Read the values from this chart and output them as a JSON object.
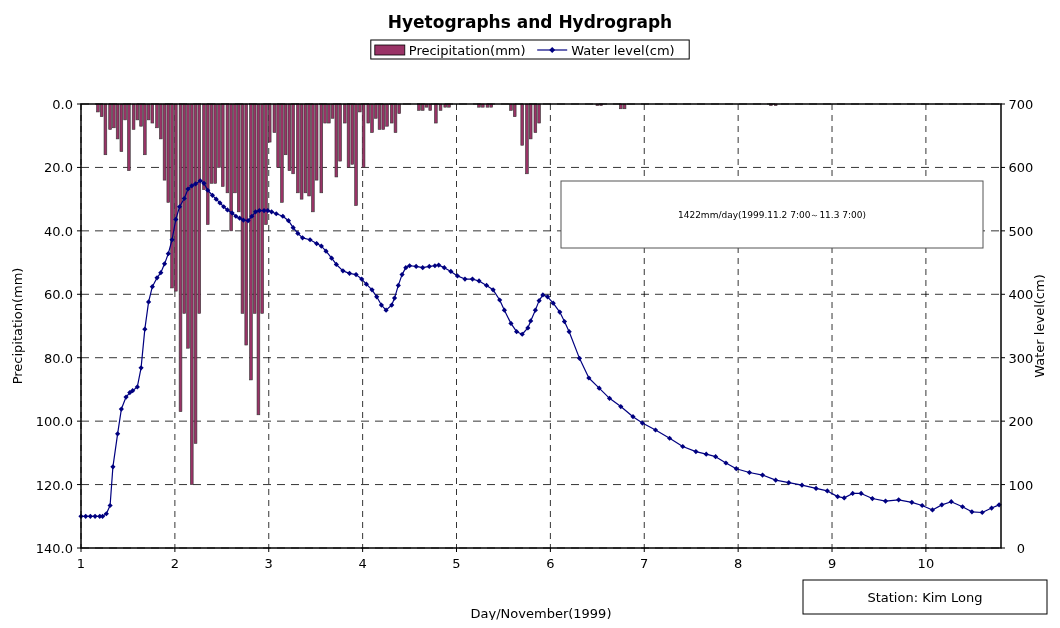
{
  "chart_data": {
    "type": "bar",
    "title": "Hyetographs and Hydrograph",
    "xlabel": "Day/November(1999)",
    "ylabel": "Precipitation(mm)",
    "y2label": "Water level(cm)",
    "xlim": [
      1,
      10.8
    ],
    "xticks": [
      1,
      2,
      3,
      4,
      5,
      6,
      7,
      8,
      9,
      10
    ],
    "ylim": [
      140,
      0
    ],
    "yticks": [
      {
        "value": 0,
        "label": "0.0"
      },
      {
        "value": 20,
        "label": "20.0"
      },
      {
        "value": 40,
        "label": "40.0"
      },
      {
        "value": 60,
        "label": "60.0"
      },
      {
        "value": 80,
        "label": "80.0"
      },
      {
        "value": 100,
        "label": "100.0"
      },
      {
        "value": 120,
        "label": "120.0"
      },
      {
        "value": 140,
        "label": "140.0"
      }
    ],
    "y2lim": [
      0,
      700
    ],
    "y2ticks": [
      0,
      100,
      200,
      300,
      400,
      500,
      600,
      700
    ],
    "grid": true,
    "legend": "top",
    "series": [
      {
        "name": "Precipitation(mm)",
        "color": "#993366",
        "x": [
          1.18,
          1.22,
          1.26,
          1.31,
          1.35,
          1.39,
          1.43,
          1.47,
          1.51,
          1.56,
          1.6,
          1.64,
          1.68,
          1.72,
          1.76,
          1.81,
          1.85,
          1.89,
          1.93,
          1.97,
          2.01,
          2.06,
          2.1,
          2.14,
          2.18,
          2.22,
          2.26,
          2.31,
          2.35,
          2.39,
          2.43,
          2.47,
          2.51,
          2.56,
          2.6,
          2.64,
          2.68,
          2.72,
          2.76,
          2.81,
          2.85,
          2.89,
          2.93,
          2.97,
          3.01,
          3.06,
          3.1,
          3.14,
          3.18,
          3.22,
          3.26,
          3.31,
          3.35,
          3.39,
          3.43,
          3.47,
          3.51,
          3.56,
          3.6,
          3.64,
          3.68,
          3.72,
          3.76,
          3.81,
          3.85,
          3.89,
          3.93,
          3.97,
          4.01,
          4.06,
          4.1,
          4.14,
          4.18,
          4.22,
          4.26,
          4.31,
          4.35,
          4.39,
          4.6,
          4.64,
          4.68,
          4.72,
          4.78,
          4.83,
          4.88,
          4.92,
          5.24,
          5.28,
          5.33,
          5.37,
          5.58,
          5.62,
          5.7,
          5.75,
          5.79,
          5.84,
          5.88,
          6.5,
          6.54,
          6.75,
          6.79,
          8.35,
          8.4
        ],
        "values": [
          2.5,
          4,
          16,
          8,
          7.5,
          11,
          15,
          5,
          21,
          8,
          5,
          7,
          16,
          5,
          6,
          7.5,
          11,
          24,
          31,
          58,
          59,
          97,
          66,
          77,
          120,
          107,
          66,
          27,
          38,
          25,
          25,
          20,
          26,
          28,
          40,
          28,
          34,
          66,
          76,
          87,
          66,
          98,
          66,
          38,
          12,
          9,
          20,
          31,
          16,
          21,
          22,
          28,
          30,
          28,
          29,
          34,
          24,
          28,
          6,
          6,
          4.5,
          23,
          18,
          6,
          20,
          19,
          32,
          2.5,
          20,
          6,
          9,
          4.5,
          8,
          8,
          7,
          6,
          9,
          3,
          2,
          2,
          1,
          2,
          6,
          2,
          1,
          1,
          1,
          1,
          1,
          1,
          2,
          4,
          13,
          22,
          11,
          9,
          6,
          0.5,
          0.5,
          1.5,
          1.5,
          0.5,
          0.5
        ]
      },
      {
        "name": "Water level(cm)",
        "type": "line",
        "axis": "y2",
        "color": "#000080",
        "marker": "diamond",
        "x": [
          1.0,
          1.05,
          1.1,
          1.15,
          1.2,
          1.23,
          1.27,
          1.31,
          1.34,
          1.39,
          1.43,
          1.48,
          1.52,
          1.55,
          1.6,
          1.64,
          1.68,
          1.72,
          1.76,
          1.81,
          1.85,
          1.89,
          1.93,
          1.97,
          2.01,
          2.05,
          2.1,
          2.14,
          2.18,
          2.22,
          2.27,
          2.31,
          2.35,
          2.4,
          2.44,
          2.48,
          2.52,
          2.56,
          2.61,
          2.65,
          2.69,
          2.73,
          2.78,
          2.82,
          2.86,
          2.9,
          2.95,
          2.99,
          3.03,
          3.08,
          3.15,
          3.21,
          3.26,
          3.31,
          3.36,
          3.44,
          3.51,
          3.56,
          3.61,
          3.67,
          3.72,
          3.79,
          3.86,
          3.93,
          3.99,
          4.04,
          4.1,
          4.15,
          4.2,
          4.25,
          4.31,
          4.34,
          4.38,
          4.42,
          4.46,
          4.5,
          4.57,
          4.64,
          4.71,
          4.77,
          4.81,
          4.87,
          4.94,
          5.01,
          5.09,
          5.17,
          5.24,
          5.32,
          5.39,
          5.46,
          5.51,
          5.58,
          5.64,
          5.7,
          5.76,
          5.79,
          5.84,
          5.88,
          5.92,
          5.97,
          6.03,
          6.1,
          6.15,
          6.2,
          6.31,
          6.41,
          6.52,
          6.63,
          6.75,
          6.88,
          6.98,
          7.12,
          7.27,
          7.41,
          7.55,
          7.66,
          7.76,
          7.87,
          7.98,
          8.12,
          8.26,
          8.4,
          8.54,
          8.68,
          8.83,
          8.95,
          9.06,
          9.13,
          9.22,
          9.31,
          9.43,
          9.57,
          9.71,
          9.85,
          9.96,
          10.07,
          10.17,
          10.27,
          10.39,
          10.49,
          10.6,
          10.7,
          10.78
        ],
        "values": [
          50,
          50,
          50,
          50,
          50,
          50,
          54,
          67,
          128,
          180,
          219,
          238,
          245,
          248,
          254,
          284,
          345,
          388,
          412,
          426,
          434,
          448,
          464,
          486,
          518,
          538,
          551,
          566,
          571,
          574,
          579,
          575,
          564,
          556,
          550,
          544,
          538,
          533,
          528,
          523,
          520,
          517,
          516,
          523,
          530,
          532,
          532,
          532,
          530,
          527,
          523,
          516,
          505,
          496,
          489,
          486,
          480,
          476,
          468,
          457,
          447,
          437,
          433,
          431,
          424,
          416,
          407,
          396,
          383,
          375,
          383,
          394,
          414,
          431,
          442,
          445,
          444,
          442,
          444,
          445,
          446,
          442,
          436,
          429,
          424,
          424,
          421,
          414,
          407,
          391,
          375,
          354,
          341,
          337,
          347,
          358,
          375,
          390,
          399,
          396,
          386,
          372,
          357,
          341,
          299,
          268,
          252,
          236,
          223,
          207,
          197,
          186,
          173,
          160,
          152,
          148,
          144,
          134,
          125,
          119,
          115,
          107,
          103,
          99,
          94,
          90,
          81,
          79,
          86,
          86,
          78,
          74,
          76,
          72,
          67,
          60,
          68,
          73,
          65,
          57,
          56,
          63,
          68
        ]
      }
    ],
    "annotations": [
      "1422mm/day(1999.11.2 7:00～11.3 7:00)",
      "Station: Kim Long"
    ]
  }
}
